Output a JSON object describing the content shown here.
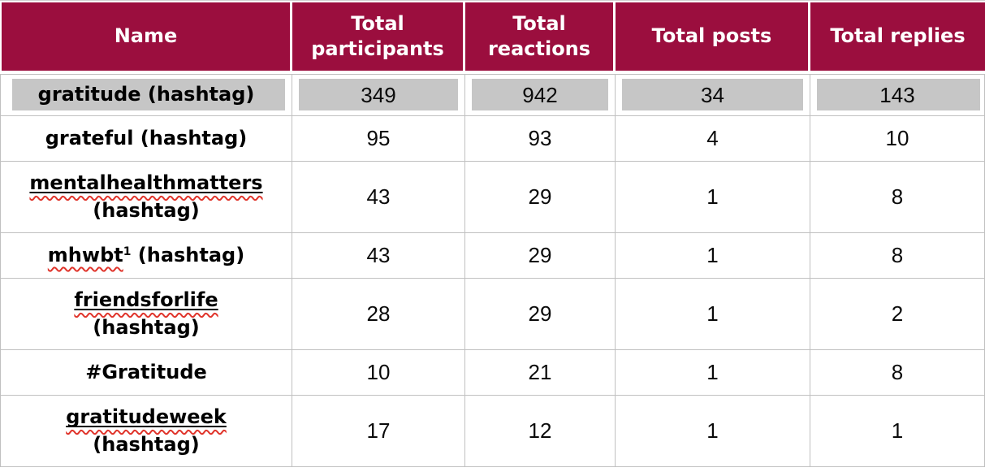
{
  "document": {
    "kind": "word-processor-table-screenshot"
  },
  "colors": {
    "header_bg": "#9B0E3E",
    "header_text": "#FFFFFF",
    "highlight_band": "#C6C6C6",
    "grid_line": "#C0C0C0",
    "spellcheck_squiggle": "#E0342B",
    "body_text": "#000000"
  },
  "table": {
    "columns": [
      "Name",
      "Total participants",
      "Total reactions",
      "Total posts",
      "Total replies"
    ],
    "rows": [
      {
        "highlighted": true,
        "name_lines": [
          [
            {
              "text": "gratitude (hashtag)"
            }
          ]
        ],
        "values": [
          "349",
          "942",
          "34",
          "143"
        ]
      },
      {
        "highlighted": false,
        "name_lines": [
          [
            {
              "text": "grateful (hashtag)"
            }
          ]
        ],
        "values": [
          "95",
          "93",
          "4",
          "10"
        ]
      },
      {
        "highlighted": false,
        "name_lines": [
          [
            {
              "text": "mentalhealthmatters",
              "underline": true,
              "squiggle": true
            }
          ],
          [
            {
              "text": "(hashtag)"
            }
          ]
        ],
        "values": [
          "43",
          "29",
          "1",
          "8"
        ]
      },
      {
        "highlighted": false,
        "name_lines": [
          [
            {
              "text": "mhwbt",
              "squiggle": true
            },
            {
              "text": "1",
              "superscript": true
            },
            {
              "text": " (hashtag)"
            }
          ]
        ],
        "values": [
          "43",
          "29",
          "1",
          "8"
        ]
      },
      {
        "highlighted": false,
        "name_lines": [
          [
            {
              "text": "friendsforlife",
              "underline": true,
              "squiggle": true
            }
          ],
          [
            {
              "text": "(hashtag)"
            }
          ]
        ],
        "values": [
          "28",
          "29",
          "1",
          "2"
        ]
      },
      {
        "highlighted": false,
        "name_lines": [
          [
            {
              "text": "#Gratitude"
            }
          ]
        ],
        "values": [
          "10",
          "21",
          "1",
          "8"
        ]
      },
      {
        "highlighted": false,
        "name_lines": [
          [
            {
              "text": "gratitudeweek",
              "underline": true,
              "squiggle": true
            }
          ],
          [
            {
              "text": "(hashtag)"
            }
          ]
        ],
        "values": [
          "17",
          "12",
          "1",
          "1"
        ]
      }
    ]
  }
}
